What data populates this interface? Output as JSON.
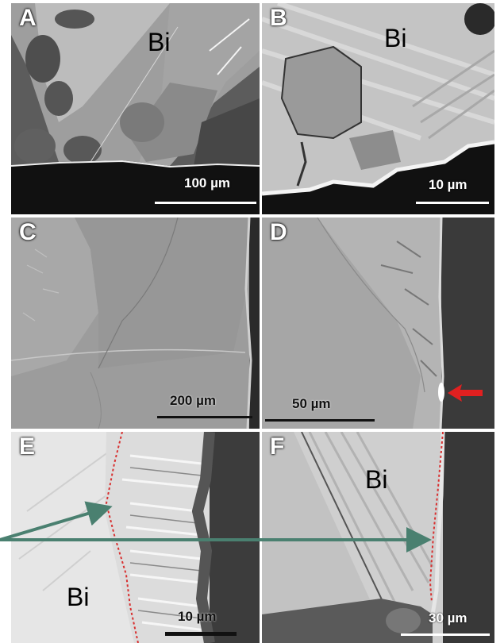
{
  "panels": {
    "a": {
      "label": "A",
      "scale": "100 µm",
      "material": "Bi"
    },
    "b": {
      "label": "B",
      "scale": "10 µm",
      "material": "Bi"
    },
    "c": {
      "label": "C",
      "scale": "200 µm"
    },
    "d": {
      "label": "D",
      "scale": "50 µm"
    },
    "e": {
      "label": "E",
      "scale": "10 µm",
      "material": "Bi"
    },
    "f": {
      "label": "F",
      "scale": "30 µm",
      "material": "Bi"
    }
  },
  "colors": {
    "arrow_red": "#e02020",
    "arrow_green": "#4a8070",
    "boundary_dotted": "#d83030"
  }
}
